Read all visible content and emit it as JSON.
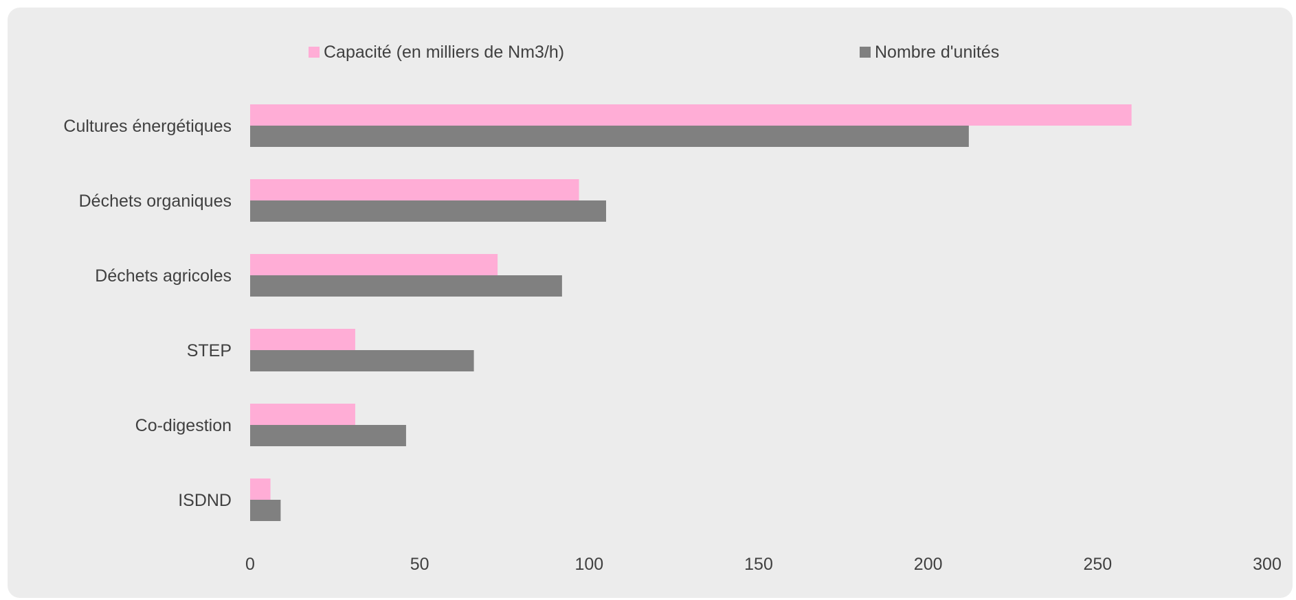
{
  "chart_data": {
    "type": "bar",
    "orientation": "horizontal",
    "categories": [
      "Cultures énergétiques",
      "Déchets organiques",
      "Déchets agricoles",
      "STEP",
      "Co-digestion",
      "ISDND"
    ],
    "series": [
      {
        "name": "Capacité (en milliers de Nm3/h)",
        "color": "#ffadd6",
        "values": [
          260,
          97,
          73,
          31,
          31,
          6
        ]
      },
      {
        "name": "Nombre d'unités",
        "color": "#808080",
        "values": [
          212,
          105,
          92,
          66,
          46,
          9
        ]
      }
    ],
    "xlim": [
      0,
      300
    ],
    "xticks": [
      0,
      50,
      100,
      150,
      200,
      250,
      300
    ],
    "title": "",
    "xlabel": "",
    "ylabel": "",
    "grid": false,
    "legend_position": "top"
  }
}
